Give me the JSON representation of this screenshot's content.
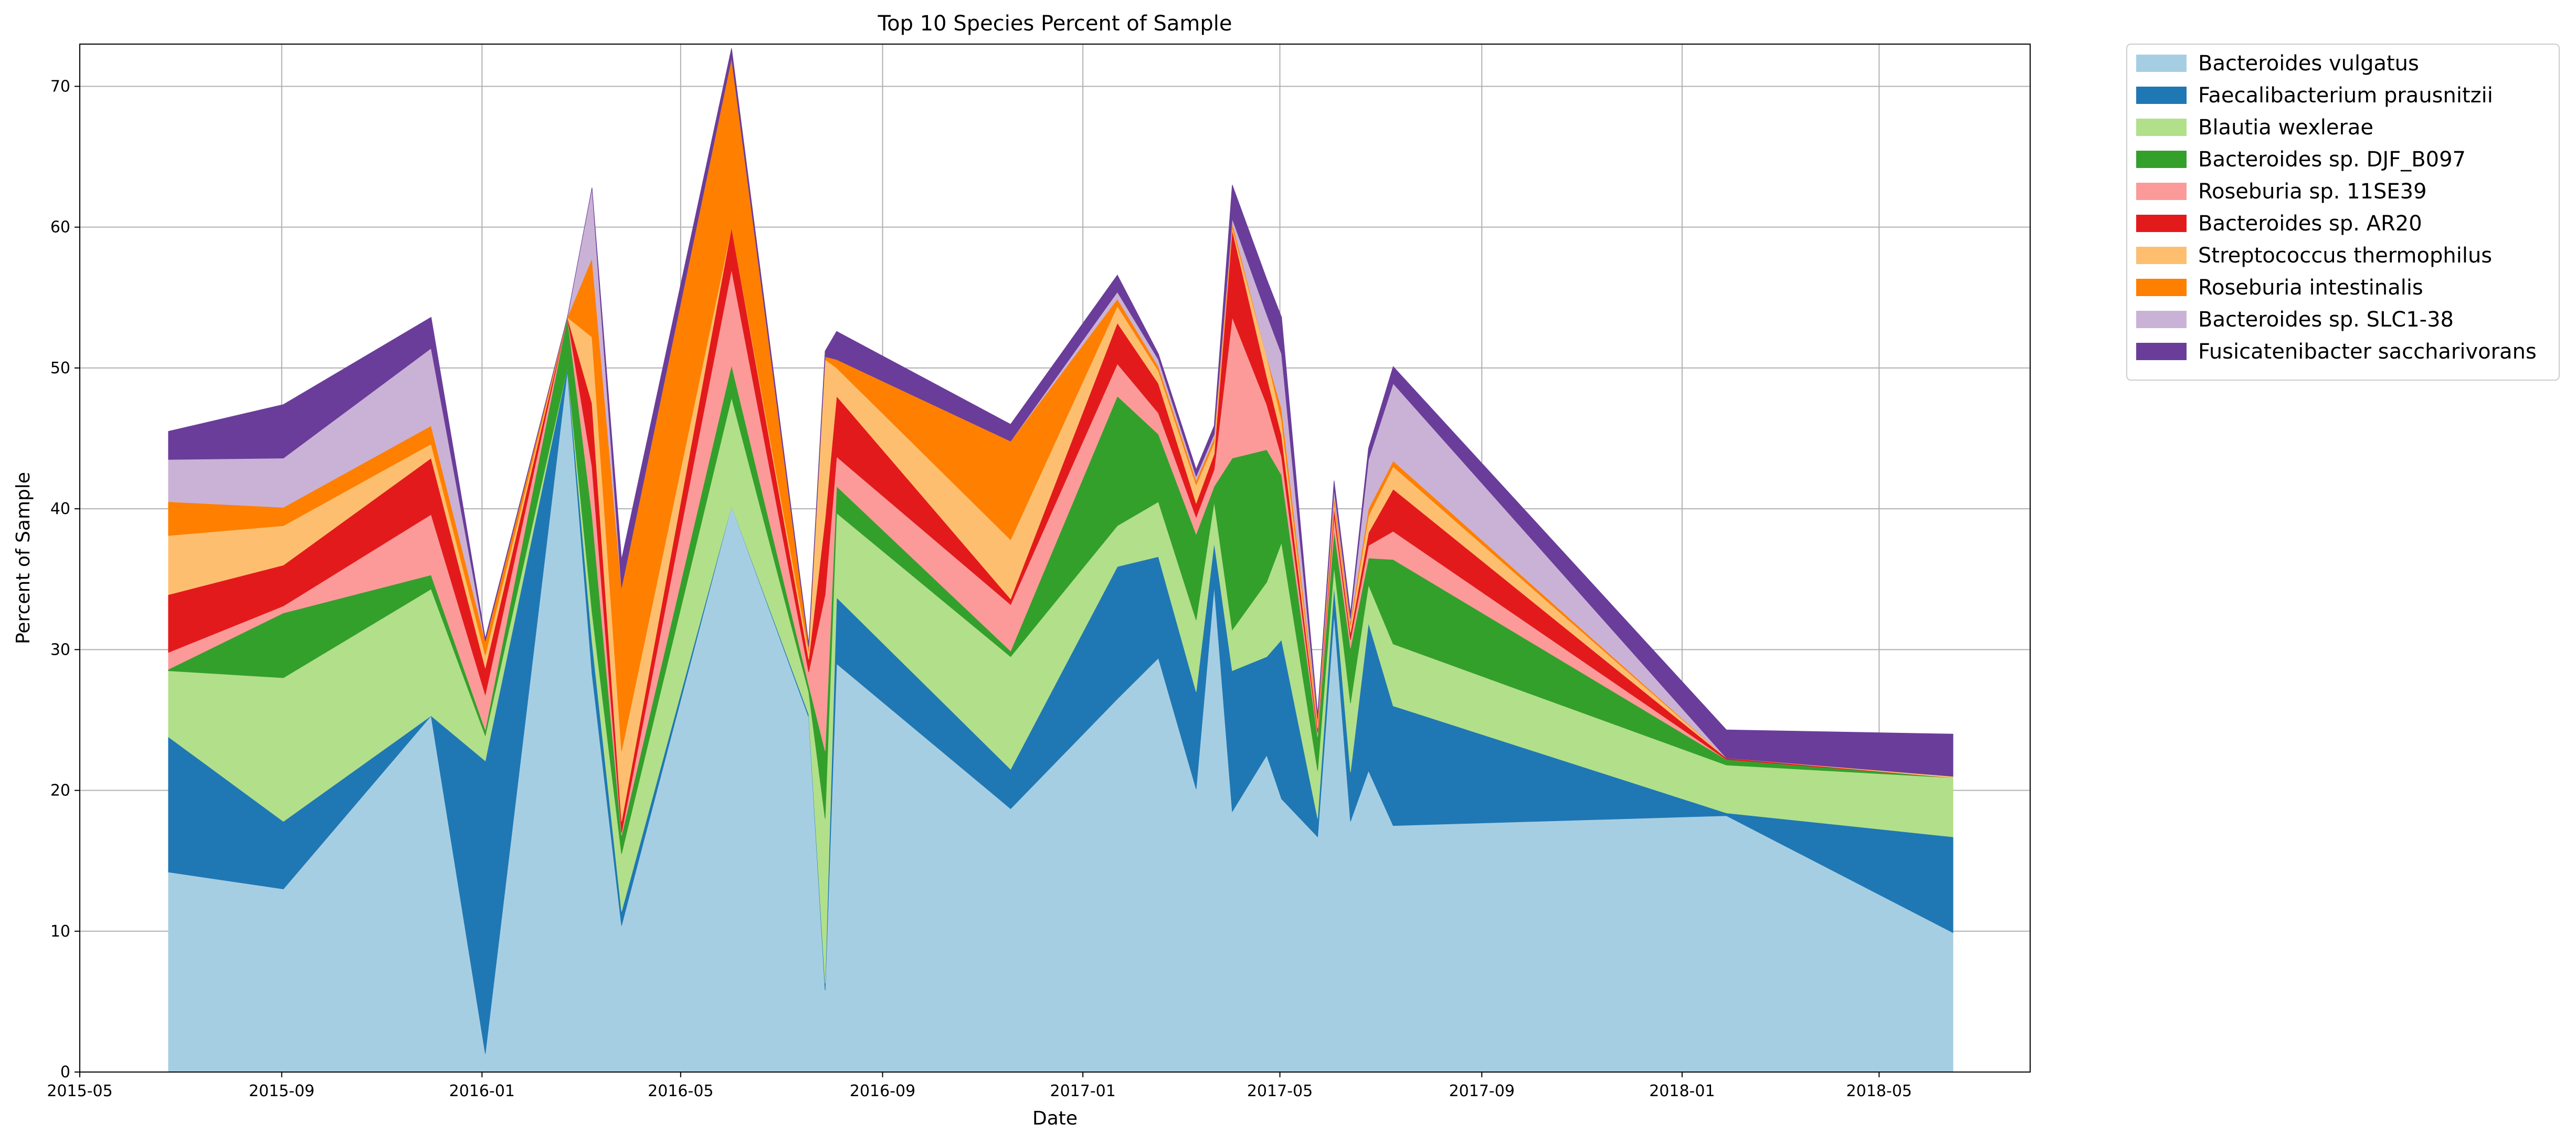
{
  "chart_data": {
    "type": "area",
    "stacked": true,
    "title": "Top 10 Species Percent of Sample",
    "xlabel": "Date",
    "ylabel": "Percent of Sample",
    "xlim": [
      "2015-05-01",
      "2018-08-01"
    ],
    "ylim": [
      0,
      73
    ],
    "x_ticks": [
      "2015-05-01",
      "2015-09-01",
      "2016-01-01",
      "2016-05-01",
      "2016-09-01",
      "2017-01-01",
      "2017-05-01",
      "2017-09-01",
      "2018-01-01",
      "2018-05-01"
    ],
    "x_tick_labels": [
      "2015-05",
      "2015-09",
      "2016-01",
      "2016-05",
      "2016-09",
      "2017-01",
      "2017-05",
      "2017-09",
      "2018-01",
      "2018-05"
    ],
    "y_ticks": [
      0,
      10,
      20,
      30,
      40,
      50,
      60,
      70
    ],
    "y_tick_labels": [
      "0",
      "10",
      "20",
      "30",
      "40",
      "50",
      "60",
      "70"
    ],
    "grid": true,
    "legend_position": "outside-top-right",
    "x": [
      "2015-06-24",
      "2015-09-02",
      "2015-12-01",
      "2016-01-03",
      "2016-02-22",
      "2016-03-08",
      "2016-03-26",
      "2016-06-01",
      "2016-07-18",
      "2016-07-28",
      "2016-08-04",
      "2016-11-18",
      "2017-01-22",
      "2017-02-16",
      "2017-03-11",
      "2017-03-22",
      "2017-04-02",
      "2017-04-23",
      "2017-05-02",
      "2017-05-24",
      "2017-06-03",
      "2017-06-13",
      "2017-06-24",
      "2017-07-09",
      "2018-01-28",
      "2018-06-15"
    ],
    "series": [
      {
        "name": "Bacteroides vulgatus",
        "color": "#a6cee3",
        "values": [
          14.2,
          13.0,
          25.3,
          1.3,
          49.8,
          28.3,
          10.4,
          40.2,
          25.2,
          5.8,
          29.0,
          18.7,
          26.5,
          29.4,
          20.1,
          34.5,
          18.5,
          22.5,
          19.4,
          16.7,
          32.5,
          17.8,
          21.4,
          17.5,
          18.2,
          9.9
        ]
      },
      {
        "name": "Faecalibacterium prausnitzii",
        "color": "#1f78b4",
        "values": [
          9.6,
          4.8,
          0.0,
          20.8,
          0.2,
          2.3,
          1.0,
          0.0,
          0.2,
          0.5,
          4.7,
          2.8,
          9.4,
          7.2,
          6.9,
          3.1,
          10.0,
          7.0,
          11.3,
          1.3,
          2.0,
          3.5,
          10.5,
          8.5,
          0.2,
          6.8
        ]
      },
      {
        "name": "Blautia wexlerae",
        "color": "#b2df8a",
        "values": [
          4.7,
          10.2,
          9.0,
          1.8,
          0.0,
          2.1,
          4.1,
          7.7,
          1.6,
          11.7,
          6.0,
          8.0,
          2.9,
          3.9,
          5.1,
          2.9,
          2.9,
          5.3,
          6.9,
          3.4,
          1.4,
          4.9,
          2.7,
          4.4,
          3.4,
          4.2
        ]
      },
      {
        "name": "Bacteroides sp. DJF_B097",
        "color": "#33a02c",
        "values": [
          0.1,
          4.6,
          1.0,
          0.4,
          3.6,
          6.9,
          1.3,
          2.3,
          0.5,
          4.8,
          1.9,
          0.4,
          9.2,
          4.8,
          6.1,
          1.1,
          12.2,
          9.4,
          4.8,
          2.4,
          2.6,
          3.9,
          1.9,
          6.0,
          0.4,
          0.0
        ]
      },
      {
        "name": "Roseburia sp. 11SE39",
        "color": "#fb9a99",
        "values": [
          1.2,
          0.5,
          4.3,
          2.5,
          0.0,
          3.4,
          0.2,
          6.8,
          0.9,
          11.1,
          2.1,
          3.3,
          2.3,
          1.5,
          1.2,
          1.2,
          10.0,
          3.2,
          1.3,
          0.3,
          1.0,
          0.6,
          0.9,
          2.0,
          0.0,
          0.0
        ]
      },
      {
        "name": "Bacteroides sp. AR20",
        "color": "#e31a1c",
        "values": [
          4.1,
          2.9,
          4.0,
          1.9,
          0.0,
          4.5,
          0.8,
          3.0,
          0.9,
          5.4,
          4.3,
          0.4,
          2.9,
          2.1,
          1.0,
          1.1,
          6.2,
          2.0,
          1.5,
          0.3,
          0.6,
          0.5,
          0.9,
          3.0,
          0.1,
          0.0
        ]
      },
      {
        "name": "Streptococcus thermophilus",
        "color": "#fdbf6f",
        "values": [
          4.2,
          2.8,
          1.0,
          0.9,
          0.0,
          4.7,
          5.0,
          0.0,
          0.6,
          11.3,
          2.0,
          4.2,
          1.2,
          0.9,
          1.3,
          0.8,
          0.2,
          1.4,
          1.1,
          0.4,
          0.4,
          0.5,
          1.2,
          1.6,
          0.0,
          0.1
        ]
      },
      {
        "name": "Roseburia intestinalis",
        "color": "#ff7f00",
        "values": [
          2.4,
          1.3,
          1.3,
          1.0,
          0.0,
          5.6,
          11.6,
          12.0,
          0.3,
          0.2,
          0.6,
          7.0,
          0.5,
          0.3,
          0.3,
          0.3,
          0.3,
          0.0,
          0.8,
          0.3,
          0.4,
          0.3,
          0.5,
          0.4,
          0.0,
          0.0
        ]
      },
      {
        "name": "Bacteroides sp. SLC1-38",
        "color": "#cab2d6",
        "values": [
          3.0,
          3.5,
          5.5,
          0.0,
          0.0,
          5.0,
          0.0,
          0.0,
          0.0,
          0.0,
          0.0,
          0.0,
          0.5,
          0.5,
          0.3,
          0.3,
          0.3,
          3.0,
          3.9,
          0.0,
          0.5,
          0.2,
          3.5,
          5.5,
          0.0,
          0.0
        ]
      },
      {
        "name": "Fusicatenibacter saccharivorans",
        "color": "#6a3d9a",
        "values": [
          2.0,
          3.8,
          2.2,
          0.2,
          0.0,
          0.0,
          2.0,
          0.7,
          0.2,
          0.4,
          2.0,
          1.2,
          1.2,
          0.4,
          0.5,
          0.6,
          2.4,
          2.5,
          2.6,
          0.3,
          0.6,
          0.4,
          0.8,
          1.2,
          2.0,
          3.0
        ]
      }
    ]
  }
}
